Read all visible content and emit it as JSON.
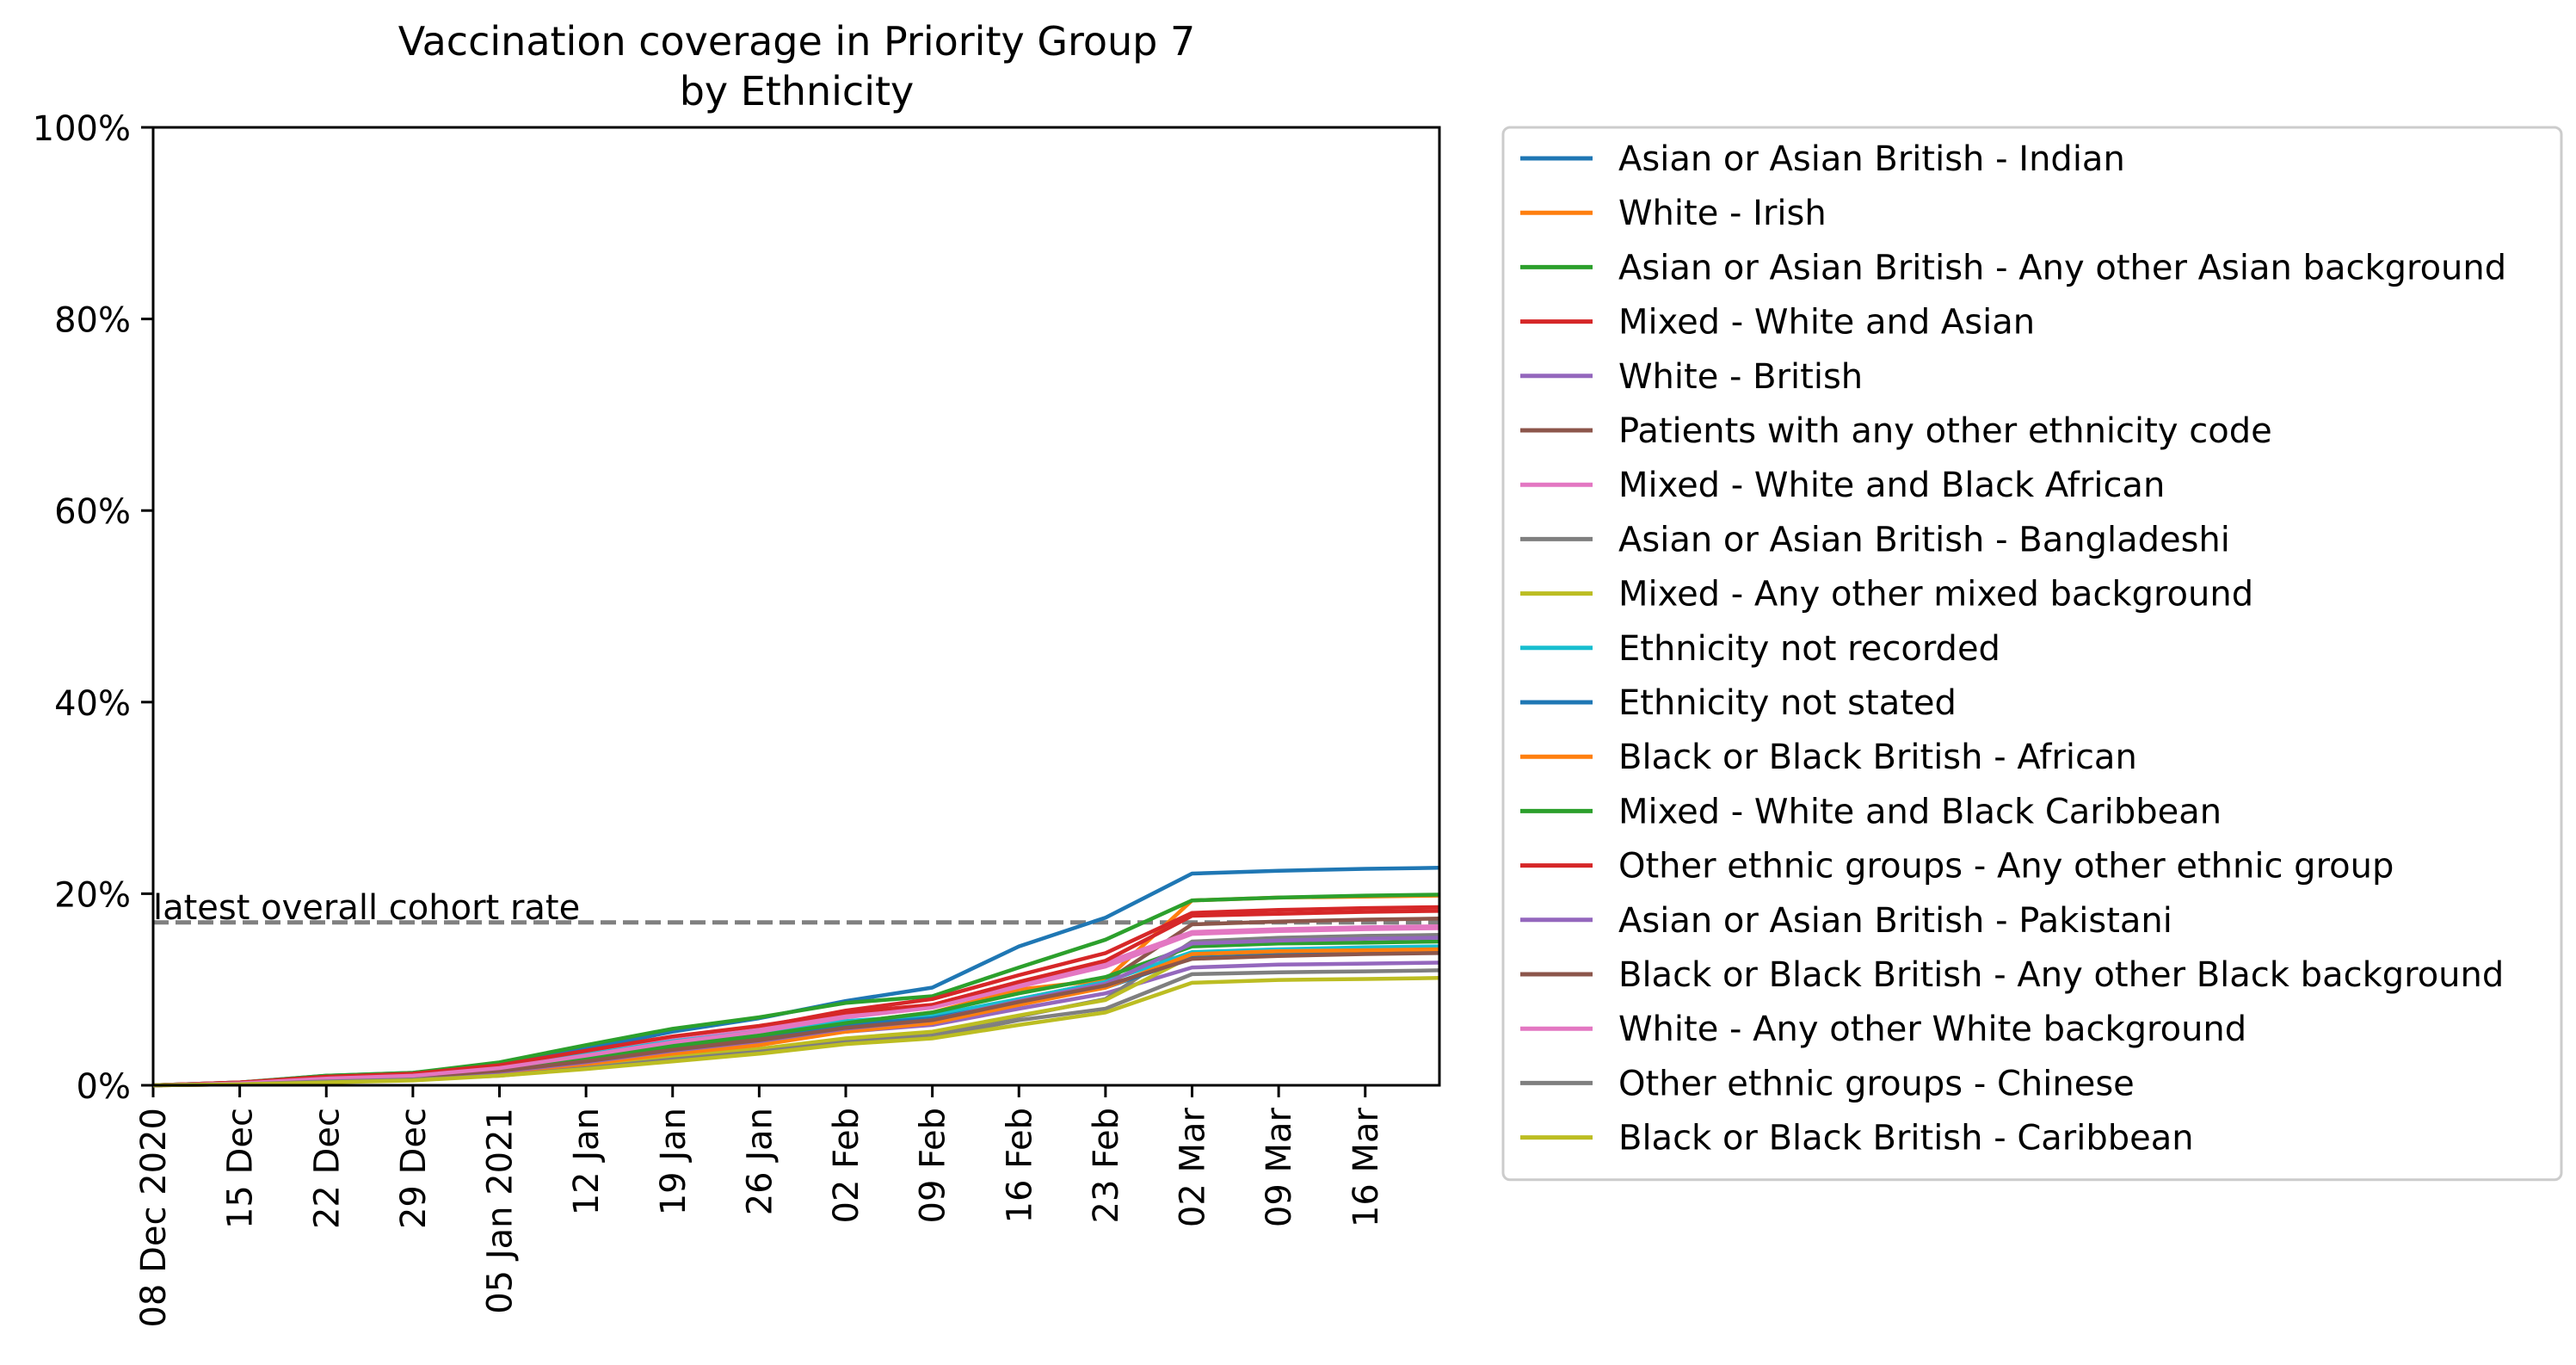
{
  "chart_data": {
    "type": "line",
    "title": "Vaccination coverage in Priority Group 7",
    "subtitle": "by Ethnicity",
    "xlabel": "",
    "ylabel": "",
    "x_range": [
      "2020-12-08",
      "2021-03-22"
    ],
    "ylim": [
      0,
      100
    ],
    "y_ticks": [
      0,
      20,
      40,
      60,
      80,
      100
    ],
    "y_tick_labels": [
      "0%",
      "20%",
      "40%",
      "60%",
      "80%",
      "100%"
    ],
    "x_ticks": [
      "2020-12-08",
      "2020-12-15",
      "2020-12-22",
      "2020-12-29",
      "2021-01-05",
      "2021-01-12",
      "2021-01-19",
      "2021-01-26",
      "2021-02-02",
      "2021-02-09",
      "2021-02-16",
      "2021-02-23",
      "2021-03-02",
      "2021-03-09",
      "2021-03-16"
    ],
    "x_tick_labels": [
      "08 Dec 2020",
      "15 Dec",
      "22 Dec",
      "29 Dec",
      "05 Jan 2021",
      "12 Jan",
      "19 Jan",
      "26 Jan",
      "02 Feb",
      "09 Feb",
      "16 Feb",
      "23 Feb",
      "02 Mar",
      "09 Mar",
      "16 Mar"
    ],
    "grid": false,
    "legend_position": "outside-right",
    "annotations": [
      {
        "text": "latest overall cohort rate",
        "y": 17,
        "style": "dashed",
        "color": "#808080"
      }
    ],
    "dates": [
      "2020-12-08",
      "2020-12-15",
      "2020-12-22",
      "2020-12-29",
      "2021-01-05",
      "2021-01-12",
      "2021-01-19",
      "2021-01-26",
      "2021-02-02",
      "2021-02-09",
      "2021-02-16",
      "2021-02-23",
      "2021-03-02",
      "2021-03-09",
      "2021-03-16",
      "2021-03-22"
    ],
    "series": [
      {
        "name": "Asian or Asian British - Indian",
        "color": "#1f77b4",
        "values": [
          0,
          0.3,
          1.0,
          1.3,
          2.2,
          3.8,
          5.6,
          7.0,
          8.8,
          10.2,
          14.5,
          17.5,
          22.1,
          22.4,
          22.6,
          22.7
        ]
      },
      {
        "name": "White - Irish",
        "color": "#ff7f0e",
        "values": [
          0,
          0.2,
          0.6,
          0.9,
          1.6,
          2.6,
          3.9,
          5.0,
          6.5,
          7.6,
          10.0,
          11.0,
          19.3,
          19.6,
          19.7,
          19.8
        ]
      },
      {
        "name": "Asian or Asian British - Any other Asian background",
        "color": "#2ca02c",
        "values": [
          0,
          0.3,
          1.0,
          1.3,
          2.4,
          4.2,
          5.9,
          7.1,
          8.6,
          9.3,
          12.3,
          15.2,
          19.3,
          19.6,
          19.8,
          19.9
        ]
      },
      {
        "name": "Mixed - White and Asian",
        "color": "#d62728",
        "values": [
          0,
          0.3,
          0.8,
          1.2,
          2.0,
          3.5,
          5.0,
          6.1,
          7.8,
          9.0,
          11.5,
          13.8,
          18.0,
          18.3,
          18.5,
          18.6
        ]
      },
      {
        "name": "White - British",
        "color": "#9467bd",
        "values": [
          0,
          0.2,
          0.5,
          0.8,
          1.4,
          2.4,
          3.5,
          4.4,
          5.6,
          6.3,
          8.0,
          9.6,
          12.3,
          12.6,
          12.7,
          12.8
        ]
      },
      {
        "name": "Patients with any other ethnicity code",
        "color": "#8c564b",
        "values": [
          0,
          0.2,
          0.6,
          0.9,
          1.6,
          2.7,
          3.9,
          4.9,
          6.2,
          7.0,
          9.0,
          10.8,
          16.8,
          17.1,
          17.3,
          17.4
        ]
      },
      {
        "name": "Mixed - White and Black African",
        "color": "#e377c2",
        "values": [
          0,
          0.2,
          0.7,
          1.0,
          1.9,
          3.3,
          4.7,
          5.8,
          7.3,
          8.3,
          10.5,
          12.8,
          16.0,
          16.3,
          16.5,
          16.6
        ]
      },
      {
        "name": "Asian or Asian British - Bangladeshi",
        "color": "#7f7f7f",
        "values": [
          0,
          0.2,
          0.5,
          0.7,
          1.2,
          2.0,
          3.0,
          3.8,
          4.8,
          5.4,
          7.2,
          9.0,
          15.0,
          15.4,
          15.6,
          15.7
        ]
      },
      {
        "name": "Mixed - Any other mixed background",
        "color": "#bcbd22",
        "values": [
          0,
          0.1,
          0.4,
          0.7,
          1.2,
          2.1,
          3.0,
          3.8,
          4.9,
          5.6,
          7.3,
          8.9,
          13.5,
          13.8,
          14.0,
          14.1
        ]
      },
      {
        "name": "Ethnicity not recorded",
        "color": "#17becf",
        "values": [
          0,
          0.2,
          0.7,
          1.0,
          1.8,
          3.2,
          4.6,
          5.6,
          6.7,
          7.3,
          9.0,
          10.8,
          13.9,
          14.2,
          14.4,
          14.5
        ]
      },
      {
        "name": "Ethnicity not stated",
        "color": "#1f77b4",
        "values": [
          0,
          0.2,
          0.6,
          0.9,
          1.6,
          2.8,
          4.2,
          5.2,
          6.3,
          7.0,
          8.6,
          10.2,
          13.3,
          13.6,
          13.8,
          13.9
        ]
      },
      {
        "name": "Black or Black British - African",
        "color": "#ff7f0e",
        "values": [
          0,
          0.1,
          0.4,
          0.7,
          1.3,
          2.2,
          3.3,
          4.2,
          5.6,
          6.5,
          8.4,
          10.2,
          13.7,
          14.0,
          14.1,
          14.2
        ]
      },
      {
        "name": "Mixed - White and Black Caribbean",
        "color": "#2ca02c",
        "values": [
          0,
          0.2,
          0.6,
          0.9,
          1.6,
          2.8,
          4.1,
          5.2,
          6.5,
          7.6,
          9.6,
          11.3,
          14.5,
          14.8,
          14.9,
          15.0
        ]
      },
      {
        "name": "Other ethnic groups - Any other ethnic group",
        "color": "#d62728",
        "values": [
          0,
          0.3,
          0.9,
          1.2,
          2.1,
          3.6,
          5.1,
          6.2,
          7.6,
          8.4,
          10.8,
          13.0,
          17.7,
          17.9,
          18.1,
          18.2
        ]
      },
      {
        "name": "Asian or Asian British - Pakistani",
        "color": "#9467bd",
        "values": [
          0,
          0.2,
          0.5,
          0.8,
          1.4,
          2.4,
          3.6,
          4.6,
          5.9,
          6.8,
          8.8,
          10.6,
          14.8,
          15.1,
          15.3,
          15.4
        ]
      },
      {
        "name": "Black or Black British - Any other Black background",
        "color": "#8c564b",
        "values": [
          0,
          0.2,
          0.6,
          0.9,
          1.5,
          2.5,
          3.7,
          4.7,
          6.0,
          6.8,
          8.7,
          10.4,
          13.2,
          13.5,
          13.7,
          13.8
        ]
      },
      {
        "name": "White - Any other White background",
        "color": "#e377c2",
        "values": [
          0,
          0.2,
          0.7,
          1.0,
          1.8,
          3.1,
          4.5,
          5.6,
          7.1,
          8.1,
          10.3,
          12.4,
          15.8,
          16.1,
          16.3,
          16.4
        ]
      },
      {
        "name": "Other ethnic groups - Chinese",
        "color": "#7f7f7f",
        "values": [
          0,
          0.1,
          0.4,
          0.6,
          1.0,
          1.8,
          2.7,
          3.5,
          4.5,
          5.0,
          6.8,
          8.0,
          11.6,
          11.8,
          11.9,
          12.0
        ]
      },
      {
        "name": "Black or Black British - Caribbean",
        "color": "#bcbd22",
        "values": [
          0,
          0.1,
          0.3,
          0.5,
          1.0,
          1.7,
          2.5,
          3.3,
          4.3,
          4.9,
          6.3,
          7.6,
          10.7,
          11.0,
          11.1,
          11.2
        ]
      }
    ]
  }
}
